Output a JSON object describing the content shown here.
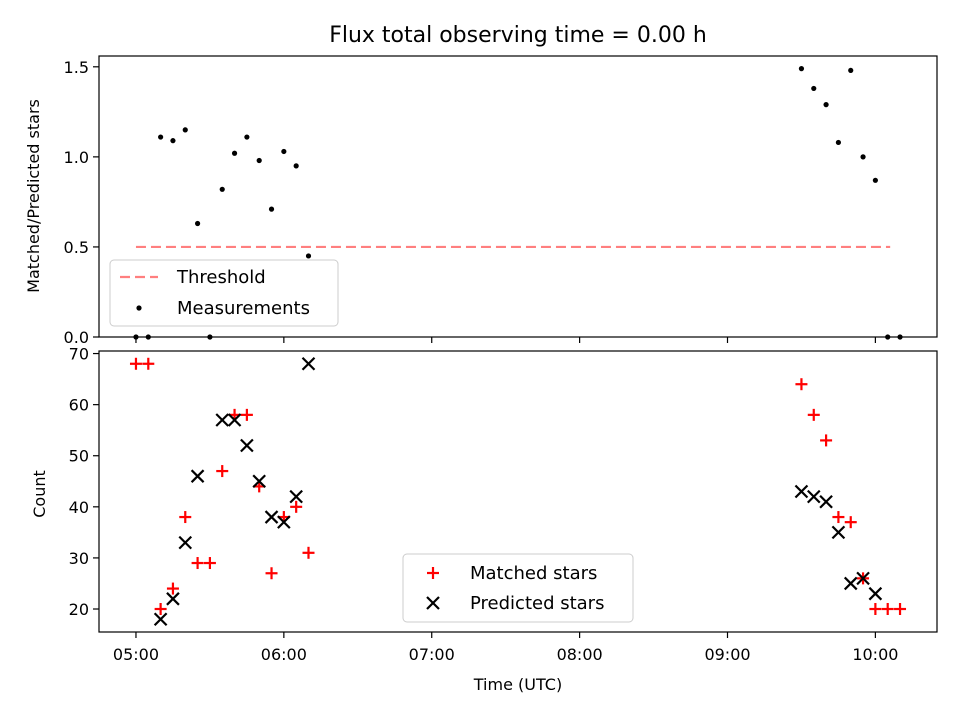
{
  "chart_data": [
    {
      "type": "scatter",
      "title": "Flux total observing time = 0.00 h",
      "ylabel": "Matched/Predicted stars",
      "xlabel": "",
      "ylim": [
        0.0,
        1.56
      ],
      "yticks": [
        0.0,
        0.5,
        1.0,
        1.5
      ],
      "ytick_labels": [
        "0.0",
        "0.5",
        "1.0",
        "1.5"
      ],
      "threshold": {
        "name": "Threshold",
        "y": 0.5,
        "x": [
          "05:00",
          "10:06"
        ],
        "color": "#ff7f7f"
      },
      "series": [
        {
          "name": "Measurements",
          "color": "#000000",
          "x": [
            "05:00",
            "05:05",
            "05:10",
            "05:15",
            "05:20",
            "05:25",
            "05:30",
            "05:35",
            "05:40",
            "05:45",
            "05:50",
            "05:55",
            "06:00",
            "06:05",
            "06:10",
            "09:30",
            "09:35",
            "09:40",
            "09:45",
            "09:50",
            "09:55",
            "10:00",
            "10:05",
            "10:10"
          ],
          "y": [
            0.0,
            0.0,
            1.11,
            1.09,
            1.15,
            0.63,
            0.0,
            0.82,
            1.02,
            1.11,
            0.98,
            0.71,
            1.03,
            0.95,
            0.45,
            1.49,
            1.38,
            1.29,
            1.08,
            1.48,
            1.0,
            0.87,
            0.0,
            0.0
          ]
        }
      ],
      "legend": "lower-left"
    },
    {
      "type": "scatter",
      "xlabel": "Time (UTC)",
      "ylabel": "Count",
      "ylim": [
        15.5,
        70.5
      ],
      "yticks": [
        20,
        30,
        40,
        50,
        60,
        70
      ],
      "ytick_labels": [
        "20",
        "30",
        "40",
        "50",
        "60",
        "70"
      ],
      "xlim": [
        "04:45",
        "10:25"
      ],
      "xticks": [
        "05:00",
        "06:00",
        "07:00",
        "08:00",
        "09:00",
        "10:00"
      ],
      "xtick_labels": [
        "05:00",
        "06:00",
        "07:00",
        "08:00",
        "09:00",
        "10:00"
      ],
      "series": [
        {
          "name": "Matched stars",
          "marker": "+",
          "color": "#ff0000",
          "x": [
            "05:00",
            "05:05",
            "05:10",
            "05:15",
            "05:20",
            "05:25",
            "05:30",
            "05:35",
            "05:40",
            "05:45",
            "05:50",
            "05:55",
            "06:00",
            "06:05",
            "06:10",
            "09:30",
            "09:35",
            "09:40",
            "09:45",
            "09:50",
            "09:55",
            "10:00",
            "10:05",
            "10:10"
          ],
          "y": [
            68,
            68,
            20,
            24,
            38,
            29,
            29,
            47,
            58,
            58,
            44,
            27,
            38,
            40,
            31,
            64,
            58,
            53,
            38,
            37,
            26,
            20,
            20,
            20
          ]
        },
        {
          "name": "Predicted stars",
          "marker": "x",
          "color": "#000000",
          "x": [
            "05:10",
            "05:15",
            "05:20",
            "05:25",
            "05:35",
            "05:40",
            "05:45",
            "05:50",
            "05:55",
            "06:00",
            "06:05",
            "06:10",
            "09:30",
            "09:35",
            "09:40",
            "09:45",
            "09:50",
            "09:55",
            "10:00"
          ],
          "y": [
            18,
            22,
            33,
            46,
            57,
            57,
            52,
            45,
            38,
            37,
            42,
            68,
            43,
            42,
            41,
            35,
            25,
            26,
            23
          ]
        }
      ],
      "legend": "lower-center"
    }
  ]
}
